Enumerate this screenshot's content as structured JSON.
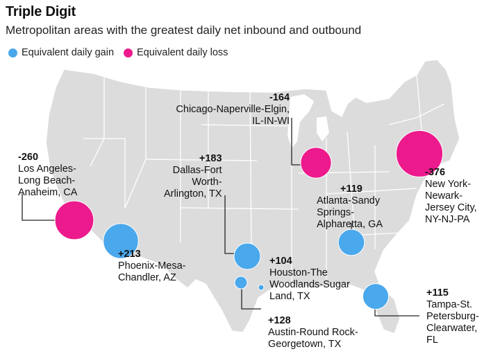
{
  "header": {
    "title": "Triple Digit",
    "subtitle": "Metropolitan areas with the greatest daily net inbound and outbound"
  },
  "legend": {
    "gain_label": "Equivalent daily gain",
    "loss_label": "Equivalent daily loss",
    "gain_color": "#4aa8ec",
    "loss_color": "#ec1a8c"
  },
  "colors": {
    "land": "#dcdcdc",
    "border": "#ffffff",
    "leader_line": "#222222"
  },
  "metros": [
    {
      "id": "la",
      "value": "-260",
      "net": -260,
      "name": "Los Angeles-\nLong Beach-\nAnaheim, CA"
    },
    {
      "id": "phoenix",
      "value": "+213",
      "net": 213,
      "name": "Phoenix-Mesa-\nChandler, AZ"
    },
    {
      "id": "dallas",
      "value": "+183",
      "net": 183,
      "name": "Dallas-Fort\nWorth-\nArlington, TX"
    },
    {
      "id": "chicago",
      "value": "-164",
      "net": -164,
      "name": "Chicago-Naperville-Elgin,\nIL-IN-WI"
    },
    {
      "id": "atlanta",
      "value": "+119",
      "net": 119,
      "name": "Atlanta-Sandy\nSprings-\nAlpharetta, GA"
    },
    {
      "id": "newyork",
      "value": "-376",
      "net": -376,
      "name": "New York-\nNewark-\nJersey City,\nNY-NJ-PA"
    },
    {
      "id": "houston",
      "value": "+104",
      "net": 104,
      "name": "Houston-The\nWoodlands-Sugar\nLand, TX"
    },
    {
      "id": "austin",
      "value": "+128",
      "net": 128,
      "name": "Austin-Round Rock-\nGeorgetown, TX"
    },
    {
      "id": "tampa",
      "value": "+115",
      "net": 115,
      "name": "Tampa-St.\nPetersburg-\nClearwater,\nFL"
    }
  ]
}
